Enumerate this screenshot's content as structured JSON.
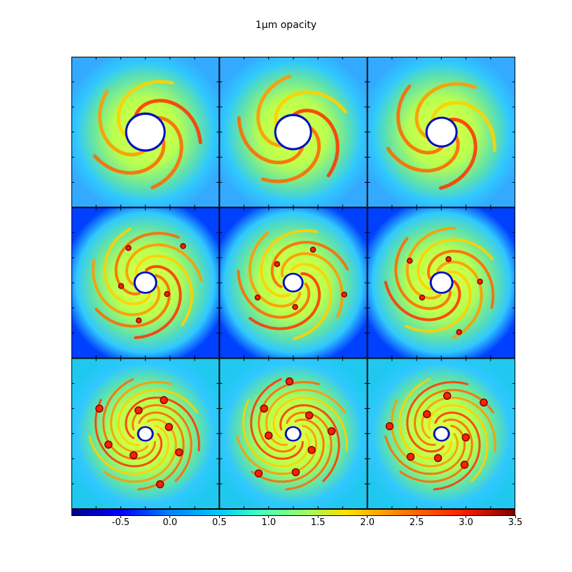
{
  "title": "1μm opacity",
  "chart_data": {
    "type": "heatmap",
    "title": "1μm opacity",
    "layout": "3x3 grid of image panels",
    "panels": 9,
    "colormap": "jet",
    "colorbar": {
      "orientation": "horizontal",
      "placement": "bottom",
      "range": [
        -1.0,
        3.5
      ],
      "ticks": [
        -0.5,
        0.0,
        0.5,
        1.0,
        1.5,
        2.0,
        2.5,
        3.0,
        3.5
      ],
      "tick_labels": [
        "-0.5",
        "0.0",
        "0.5",
        "1.0",
        "1.5",
        "2.0",
        "2.5",
        "3.0",
        "3.5"
      ]
    },
    "colors": {
      "jet_low": "#00008f",
      "jet_mid_low": "#00c8ff",
      "jet_mid": "#80ff80",
      "jet_mid_high": "#ffe000",
      "jet_high": "#ff2000",
      "jet_max": "#800000",
      "disk_base": "#5ce0b0",
      "inner_hole": "#ffffff"
    },
    "grid": false,
    "xlabel": "",
    "ylabel": ""
  }
}
